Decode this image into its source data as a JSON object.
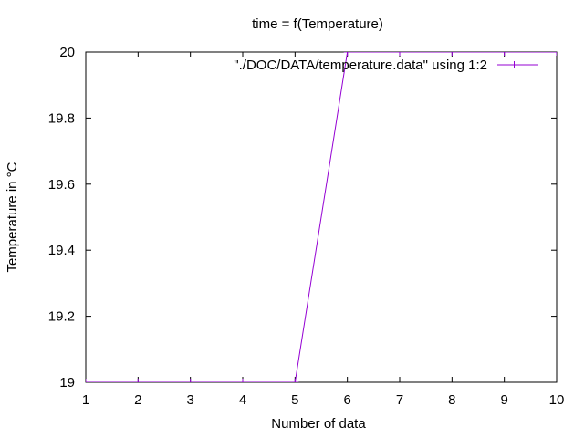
{
  "chart_data": {
    "type": "line",
    "title": "time = f(Temperature)",
    "xlabel": "Number of data",
    "ylabel": "Temperature in °C",
    "xlim": [
      1,
      10
    ],
    "ylim": [
      19,
      20
    ],
    "xticks": [
      1,
      2,
      3,
      4,
      5,
      6,
      7,
      8,
      9,
      10
    ],
    "yticks": [
      19,
      19.2,
      19.4,
      19.6,
      19.8,
      20
    ],
    "ytick_labels": [
      "19",
      "19.2",
      "19.4",
      "19.6",
      "19.8",
      "20"
    ],
    "grid": false,
    "legend_position": "top-right",
    "series": [
      {
        "name": "\"./DOC/DATA/temperature.data\" using 1:2",
        "color": "#9400d3",
        "marker": "plus",
        "x": [
          1,
          2,
          3,
          4,
          5,
          6,
          7,
          8,
          9,
          10
        ],
        "y": [
          19,
          19,
          19,
          19,
          19,
          20,
          20,
          20,
          20,
          20
        ]
      }
    ]
  }
}
